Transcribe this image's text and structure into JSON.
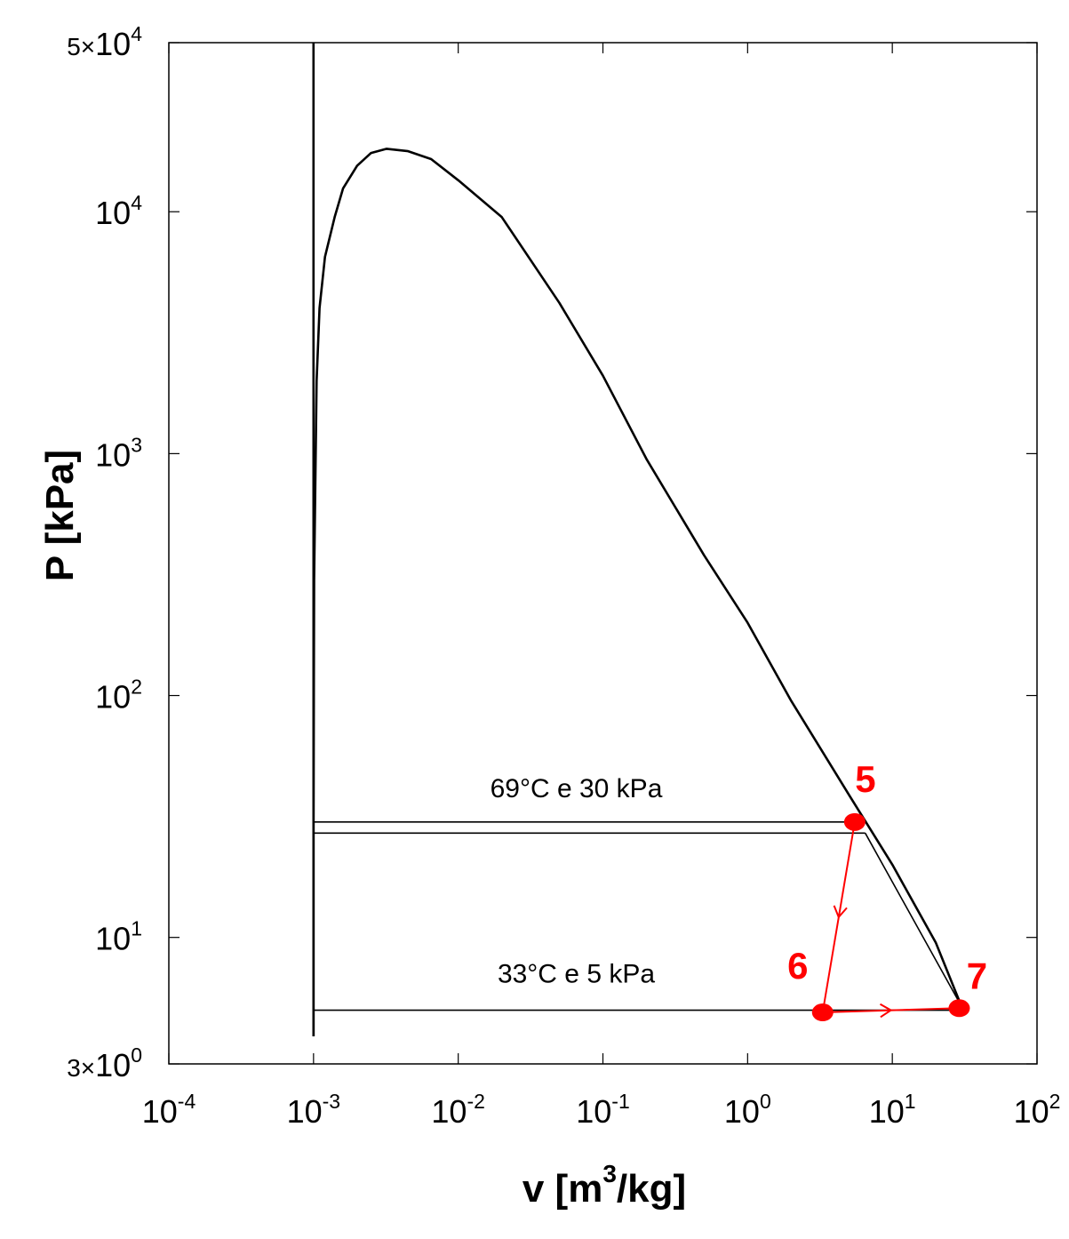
{
  "chart_data": {
    "type": "line",
    "title": "",
    "xlabel": "v [m3/kg]",
    "xlabel_parts": {
      "base": "v [m",
      "sup": "3",
      "rest": "/kg]"
    },
    "ylabel": "P [kPa]",
    "xscale": "log",
    "yscale": "log",
    "xlim": [
      0.0001,
      100
    ],
    "ylim": [
      3,
      50000
    ],
    "grid": false,
    "x_ticks": [
      {
        "base": "10",
        "exp": "-4",
        "value": 0.0001
      },
      {
        "base": "10",
        "exp": "-3",
        "value": 0.001
      },
      {
        "base": "10",
        "exp": "-2",
        "value": 0.01
      },
      {
        "base": "10",
        "exp": "-1",
        "value": 0.1
      },
      {
        "base": "10",
        "exp": "0",
        "value": 1
      },
      {
        "base": "10",
        "exp": "1",
        "value": 10
      },
      {
        "base": "10",
        "exp": "2",
        "value": 100
      }
    ],
    "y_ticks": [
      {
        "prefix": "3×",
        "base": "10",
        "exp": "0",
        "value": 3
      },
      {
        "prefix": "",
        "base": "10",
        "exp": "1",
        "value": 10
      },
      {
        "prefix": "",
        "base": "10",
        "exp": "2",
        "value": 100
      },
      {
        "prefix": "",
        "base": "10",
        "exp": "3",
        "value": 1000
      },
      {
        "prefix": "",
        "base": "10",
        "exp": "4",
        "value": 10000
      },
      {
        "prefix": "5×",
        "base": "10",
        "exp": "4",
        "value": 50000
      }
    ],
    "colors": {
      "curve": "#000000",
      "process": "#ff0000"
    },
    "series": [
      {
        "kind": "saturation-dome",
        "color": "#000000",
        "points": [
          [
            0.001,
            3.9
          ],
          [
            0.001,
            30
          ],
          [
            0.00101,
            300
          ],
          [
            0.00105,
            2000
          ],
          [
            0.0011,
            4000
          ],
          [
            0.0012,
            6500
          ],
          [
            0.0014,
            9500
          ],
          [
            0.0016,
            12500
          ],
          [
            0.002,
            15500
          ],
          [
            0.0025,
            17500
          ],
          [
            0.0032,
            18200
          ],
          [
            0.0045,
            17800
          ],
          [
            0.0065,
            16500
          ],
          [
            0.01,
            13500
          ],
          [
            0.02,
            9500
          ],
          [
            0.05,
            4200
          ],
          [
            0.1,
            2100
          ],
          [
            0.2,
            950
          ],
          [
            0.5,
            380
          ],
          [
            1,
            200
          ],
          [
            2,
            95
          ],
          [
            5,
            39
          ],
          [
            10,
            20
          ],
          [
            20,
            9.5
          ],
          [
            30,
            5.2
          ]
        ]
      },
      {
        "kind": "compressed-liquid-line",
        "color": "#000000",
        "points": [
          [
            0.001,
            3.9
          ],
          [
            0.001,
            50000
          ]
        ]
      },
      {
        "kind": "isobar",
        "label": "69°C e 30 kPa",
        "color": "#000000",
        "points": [
          [
            0.001,
            30
          ],
          [
            5.5,
            30
          ]
        ]
      },
      {
        "kind": "isobar",
        "color": "#000000",
        "points": [
          [
            0.001,
            27
          ],
          [
            6.5,
            27
          ]
        ]
      },
      {
        "kind": "isobar",
        "label": "33°C e 5 kPa",
        "color": "#000000",
        "points": [
          [
            0.001,
            5
          ],
          [
            30,
            5
          ]
        ]
      },
      {
        "kind": "isobar-tail",
        "color": "#000000",
        "points": [
          [
            6.5,
            27
          ],
          [
            30,
            5.2
          ]
        ]
      },
      {
        "kind": "process",
        "name": "5-6",
        "color": "#ff0000",
        "points": [
          [
            5.5,
            30
          ],
          [
            3.3,
            4.9
          ]
        ]
      },
      {
        "kind": "process",
        "name": "6-7",
        "color": "#ff0000",
        "points": [
          [
            3.3,
            4.9
          ],
          [
            29,
            5.1
          ]
        ]
      }
    ],
    "state_points": [
      {
        "label": "5",
        "x": 5.5,
        "y": 30
      },
      {
        "label": "6",
        "x": 3.3,
        "y": 4.9
      },
      {
        "label": "7",
        "x": 29,
        "y": 5.1
      }
    ],
    "annotations": [
      {
        "text": "69°C e 30 kPa",
        "x": 0.1,
        "y": 38
      },
      {
        "text": "33°C e 5 kPa",
        "x": 0.1,
        "y": 6.5
      }
    ]
  }
}
